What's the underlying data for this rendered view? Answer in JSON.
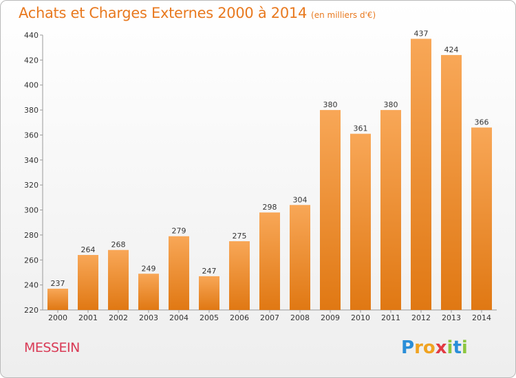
{
  "title": "Achats et Charges Externes 2000 à 2014",
  "subtitle": "(en milliers d'€)",
  "commune": "MESSEIN",
  "logo": {
    "letters": [
      "P",
      "r",
      "o",
      "x",
      "i",
      "t",
      "i"
    ],
    "colors": [
      "#2a8ed8",
      "#f0a321",
      "#f0a321",
      "#e23b43",
      "#8cc63f",
      "#2a8ed8",
      "#8cc63f"
    ]
  },
  "colors": {
    "bar_top": "#f8a757",
    "bar_bottom": "#e07813",
    "title": "#e8791f",
    "commune": "#d93a55"
  },
  "chart_data": {
    "type": "bar",
    "categories": [
      "2000",
      "2001",
      "2002",
      "2003",
      "2004",
      "2005",
      "2006",
      "2007",
      "2008",
      "2009",
      "2010",
      "2011",
      "2012",
      "2013",
      "2014"
    ],
    "values": [
      237,
      264,
      268,
      249,
      279,
      247,
      275,
      298,
      304,
      380,
      361,
      380,
      437,
      424,
      366
    ],
    "ylim": [
      220,
      440
    ],
    "yticks": [
      220,
      240,
      260,
      280,
      300,
      320,
      340,
      360,
      380,
      400,
      420,
      440
    ],
    "grid": false
  }
}
